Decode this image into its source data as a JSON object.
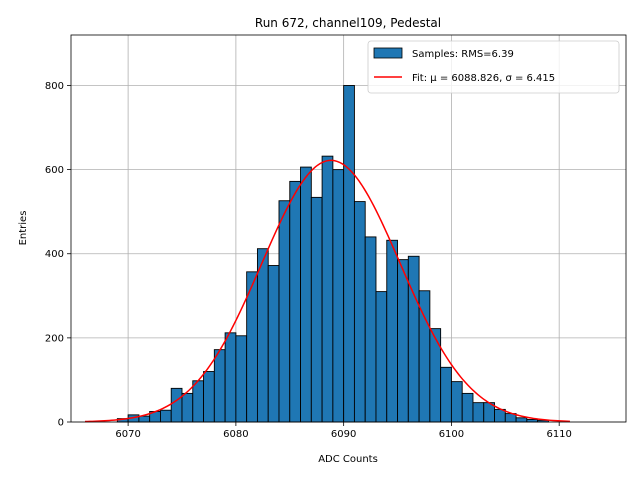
{
  "chart_data": {
    "type": "bar",
    "title": "Run 672, channel109, Pedestal",
    "xlabel": "ADC Counts",
    "ylabel": "Entries",
    "xlim": [
      6064.7,
      6116.2
    ],
    "ylim": [
      0,
      920
    ],
    "grid": true,
    "legend_placement": "top-right",
    "x_ticks": [
      6070,
      6080,
      6090,
      6100,
      6110
    ],
    "y_ticks": [
      0,
      200,
      400,
      600,
      800
    ],
    "bar_color": "#1f77b4",
    "fit_color": "#ff0000",
    "bin_width": 1,
    "bins": [
      {
        "x": 6069,
        "count": 8
      },
      {
        "x": 6070,
        "count": 17
      },
      {
        "x": 6071,
        "count": 14
      },
      {
        "x": 6072,
        "count": 25
      },
      {
        "x": 6073,
        "count": 28
      },
      {
        "x": 6074,
        "count": 80
      },
      {
        "x": 6075,
        "count": 68
      },
      {
        "x": 6076,
        "count": 98
      },
      {
        "x": 6077,
        "count": 120
      },
      {
        "x": 6078,
        "count": 172
      },
      {
        "x": 6079,
        "count": 212
      },
      {
        "x": 6080,
        "count": 205
      },
      {
        "x": 6081,
        "count": 357
      },
      {
        "x": 6082,
        "count": 412
      },
      {
        "x": 6083,
        "count": 372
      },
      {
        "x": 6084,
        "count": 526
      },
      {
        "x": 6085,
        "count": 572
      },
      {
        "x": 6086,
        "count": 606
      },
      {
        "x": 6087,
        "count": 534
      },
      {
        "x": 6088,
        "count": 632
      },
      {
        "x": 6089,
        "count": 600
      },
      {
        "x": 6090,
        "count": 800
      },
      {
        "x": 6091,
        "count": 524
      },
      {
        "x": 6092,
        "count": 440
      },
      {
        "x": 6093,
        "count": 310
      },
      {
        "x": 6094,
        "count": 432
      },
      {
        "x": 6095,
        "count": 386
      },
      {
        "x": 6096,
        "count": 394
      },
      {
        "x": 6097,
        "count": 312
      },
      {
        "x": 6098,
        "count": 222
      },
      {
        "x": 6099,
        "count": 130
      },
      {
        "x": 6100,
        "count": 96
      },
      {
        "x": 6101,
        "count": 68
      },
      {
        "x": 6102,
        "count": 46
      },
      {
        "x": 6103,
        "count": 46
      },
      {
        "x": 6104,
        "count": 30
      },
      {
        "x": 6105,
        "count": 20
      },
      {
        "x": 6106,
        "count": 10
      },
      {
        "x": 6107,
        "count": 6
      },
      {
        "x": 6108,
        "count": 4
      }
    ],
    "fit": {
      "mu": 6088.826,
      "sigma": 6.415,
      "amplitude": 622,
      "x_range": [
        6066,
        6111
      ]
    },
    "legend": [
      {
        "label": "Samples: RMS=6.39",
        "kind": "patch"
      },
      {
        "label": "Fit: μ = 6088.826, σ = 6.415",
        "kind": "line"
      }
    ]
  }
}
